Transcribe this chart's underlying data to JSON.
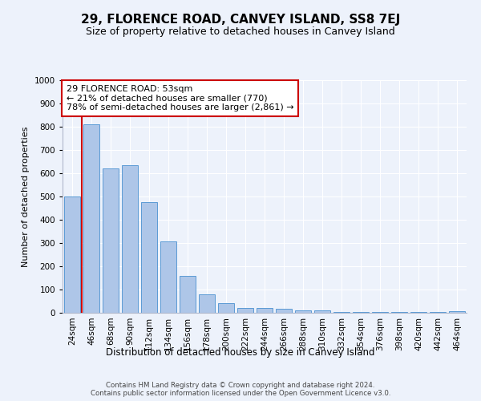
{
  "title": "29, FLORENCE ROAD, CANVEY ISLAND, SS8 7EJ",
  "subtitle": "Size of property relative to detached houses in Canvey Island",
  "xlabel": "Distribution of detached houses by size in Canvey Island",
  "ylabel": "Number of detached properties",
  "bar_labels": [
    "24sqm",
    "46sqm",
    "68sqm",
    "90sqm",
    "112sqm",
    "134sqm",
    "156sqm",
    "178sqm",
    "200sqm",
    "222sqm",
    "244sqm",
    "266sqm",
    "288sqm",
    "310sqm",
    "332sqm",
    "354sqm",
    "376sqm",
    "398sqm",
    "420sqm",
    "442sqm",
    "464sqm"
  ],
  "bar_values": [
    500,
    810,
    620,
    635,
    475,
    307,
    160,
    78,
    43,
    22,
    22,
    16,
    12,
    9,
    5,
    5,
    2,
    2,
    2,
    2,
    8
  ],
  "bar_color": "#aec6e8",
  "bar_edgecolor": "#5b9bd5",
  "ylim": [
    0,
    1000
  ],
  "yticks": [
    0,
    100,
    200,
    300,
    400,
    500,
    600,
    700,
    800,
    900,
    1000
  ],
  "vline_x": 0.5,
  "vline_color": "#cc0000",
  "annotation_text": "29 FLORENCE ROAD: 53sqm\n← 21% of detached houses are smaller (770)\n78% of semi-detached houses are larger (2,861) →",
  "annotation_box_facecolor": "#ffffff",
  "annotation_box_edgecolor": "#cc0000",
  "title_fontsize": 11,
  "subtitle_fontsize": 9,
  "axis_label_fontsize": 8,
  "tick_fontsize": 7.5,
  "footer_text": "Contains HM Land Registry data © Crown copyright and database right 2024.\nContains public sector information licensed under the Open Government Licence v3.0.",
  "background_color": "#edf2fb",
  "plot_bg_color": "#edf2fb"
}
